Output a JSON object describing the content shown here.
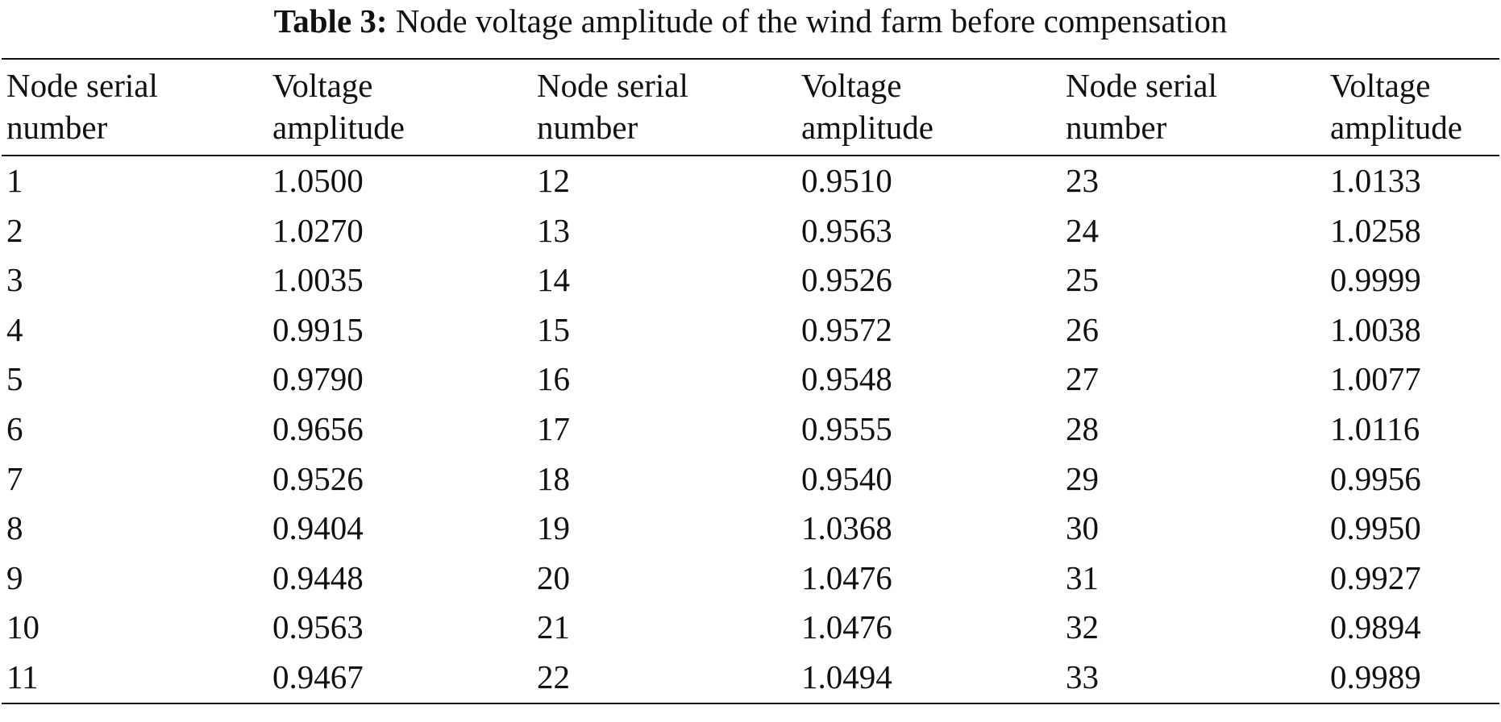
{
  "caption": {
    "label": "Table 3:",
    "text": "Node voltage amplitude of the wind farm before compensation"
  },
  "columns": [
    [
      "Node serial",
      "number"
    ],
    [
      "Voltage",
      "amplitude"
    ],
    [
      "Node serial",
      "number"
    ],
    [
      "Voltage",
      "amplitude"
    ],
    [
      "Node serial",
      "number"
    ],
    [
      "Voltage",
      "amplitude"
    ]
  ],
  "rows": [
    [
      "1",
      "1.0500",
      "12",
      "0.9510",
      "23",
      "1.0133"
    ],
    [
      "2",
      "1.0270",
      "13",
      "0.9563",
      "24",
      "1.0258"
    ],
    [
      "3",
      "1.0035",
      "14",
      "0.9526",
      "25",
      "0.9999"
    ],
    [
      "4",
      "0.9915",
      "15",
      "0.9572",
      "26",
      "1.0038"
    ],
    [
      "5",
      "0.9790",
      "16",
      "0.9548",
      "27",
      "1.0077"
    ],
    [
      "6",
      "0.9656",
      "17",
      "0.9555",
      "28",
      "1.0116"
    ],
    [
      "7",
      "0.9526",
      "18",
      "0.9540",
      "29",
      "0.9956"
    ],
    [
      "8",
      "0.9404",
      "19",
      "1.0368",
      "30",
      "0.9950"
    ],
    [
      "9",
      "0.9448",
      "20",
      "1.0476",
      "31",
      "0.9927"
    ],
    [
      "10",
      "0.9563",
      "21",
      "1.0476",
      "32",
      "0.9894"
    ],
    [
      "11",
      "0.9467",
      "22",
      "1.0494",
      "33",
      "0.9989"
    ]
  ]
}
